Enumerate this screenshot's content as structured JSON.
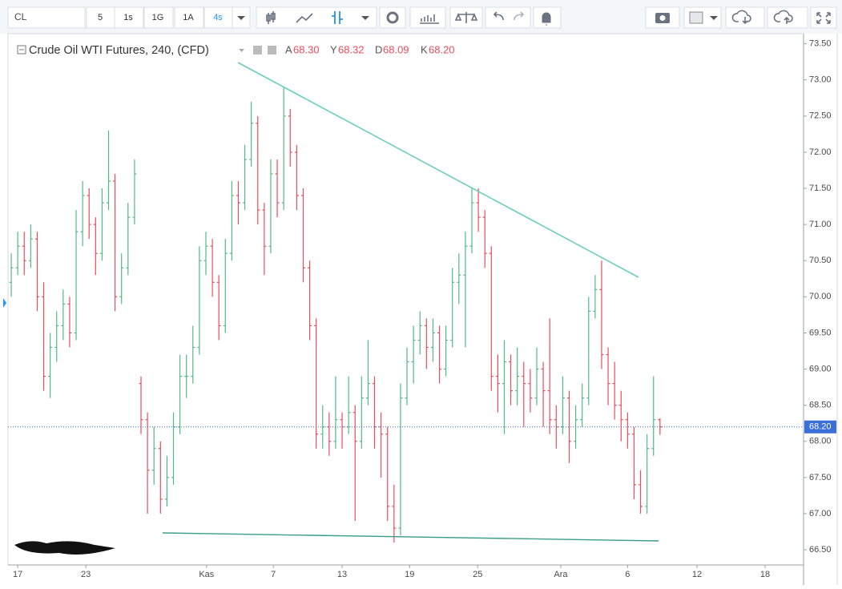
{
  "toolbar": {
    "symbol": "CL",
    "intervals": [
      "5",
      "1s",
      "1G",
      "1A",
      "4s"
    ],
    "active_interval": 4
  },
  "chart_data": {
    "type": "ohlc",
    "title": "Crude Oil WTI Futures, 240, (CFD)",
    "legend_labels": [
      "A",
      "Y",
      "D",
      "K"
    ],
    "legend_values": [
      "68.30",
      "68.32",
      "68.09",
      "68.20"
    ],
    "up_color": "#53b987",
    "down_color": "#eb4d5c",
    "last_price": {
      "value": 68.2,
      "label": "68.20"
    },
    "last_price_color": "#3a6fd8",
    "xlim": [
      -0.5,
      122
    ],
    "ylim": [
      66.29,
      73.64
    ],
    "xticks": [
      {
        "value": 1,
        "label": "17"
      },
      {
        "value": 11.5,
        "label": "23"
      },
      {
        "value": 30.1,
        "label": "Kas"
      },
      {
        "value": 40.4,
        "label": "7"
      },
      {
        "value": 51,
        "label": "13"
      },
      {
        "value": 61.4,
        "label": "19"
      },
      {
        "value": 71.9,
        "label": "25"
      },
      {
        "value": 84.7,
        "label": "Ara"
      },
      {
        "value": 95,
        "label": "6"
      },
      {
        "value": 105.7,
        "label": "12"
      },
      {
        "value": 116.2,
        "label": "18"
      }
    ],
    "yticks": [
      {
        "value": 66.5,
        "label": "66.50"
      },
      {
        "value": 67,
        "label": "67.00"
      },
      {
        "value": 67.5,
        "label": "67.50"
      },
      {
        "value": 68,
        "label": "68.00"
      },
      {
        "value": 68.5,
        "label": "68.50"
      },
      {
        "value": 69,
        "label": "69.00"
      },
      {
        "value": 69.5,
        "label": "69.50"
      },
      {
        "value": 70,
        "label": "70.00"
      },
      {
        "value": 70.5,
        "label": "70.50"
      },
      {
        "value": 71,
        "label": "71.00"
      },
      {
        "value": 71.5,
        "label": "71.50"
      },
      {
        "value": 72,
        "label": "72.00"
      },
      {
        "value": 72.5,
        "label": "72.50"
      },
      {
        "value": 73,
        "label": "73.00"
      },
      {
        "value": 73.5,
        "label": "73.50"
      }
    ],
    "ohlc": [
      [
        70.2,
        70.6,
        70.0,
        70.4
      ],
      [
        70.4,
        70.9,
        70.3,
        70.7
      ],
      [
        70.7,
        70.9,
        70.3,
        70.5
      ],
      [
        70.5,
        71.0,
        70.4,
        70.8
      ],
      [
        70.8,
        70.9,
        69.8,
        70.0
      ],
      [
        70.0,
        70.2,
        68.7,
        68.9
      ],
      [
        68.9,
        69.5,
        68.6,
        69.3
      ],
      [
        69.3,
        69.8,
        69.1,
        69.6
      ],
      [
        69.6,
        70.1,
        69.4,
        69.9
      ],
      [
        69.9,
        70.0,
        69.3,
        69.5
      ],
      [
        69.5,
        71.2,
        69.4,
        70.9
      ],
      [
        70.9,
        71.6,
        70.7,
        71.4
      ],
      [
        71.4,
        71.5,
        70.8,
        71.0
      ],
      [
        71.0,
        71.1,
        70.3,
        70.6
      ],
      [
        70.6,
        71.5,
        70.5,
        71.3
      ],
      [
        71.3,
        72.3,
        71.2,
        71.6
      ],
      [
        71.6,
        71.7,
        69.8,
        70.0
      ],
      [
        70.0,
        70.6,
        69.9,
        70.4
      ],
      [
        70.4,
        71.3,
        70.3,
        71.1
      ],
      [
        71.1,
        71.9,
        71.0,
        71.7
      ],
      [
        68.8,
        68.9,
        68.1,
        68.3
      ],
      [
        68.3,
        68.4,
        67.0,
        67.6
      ],
      [
        67.6,
        68.2,
        67.4,
        67.9
      ],
      [
        67.9,
        68.0,
        67.0,
        67.2
      ],
      [
        67.2,
        67.8,
        67.1,
        67.5
      ],
      [
        67.5,
        68.4,
        67.4,
        68.2
      ],
      [
        68.2,
        69.2,
        68.1,
        68.9
      ],
      [
        68.9,
        69.2,
        68.6,
        68.9
      ],
      [
        68.9,
        69.6,
        68.8,
        69.3
      ],
      [
        69.3,
        70.7,
        69.2,
        70.5
      ],
      [
        70.5,
        70.9,
        70.3,
        70.7
      ],
      [
        70.7,
        70.8,
        70.0,
        70.2
      ],
      [
        70.2,
        70.3,
        69.4,
        69.6
      ],
      [
        69.6,
        70.8,
        69.5,
        70.6
      ],
      [
        70.6,
        71.6,
        70.5,
        71.4
      ],
      [
        71.4,
        71.6,
        71.0,
        71.3
      ],
      [
        71.3,
        72.1,
        71.2,
        71.9
      ],
      [
        71.9,
        72.7,
        71.8,
        72.4
      ],
      [
        72.4,
        72.5,
        71.0,
        71.2
      ],
      [
        71.2,
        71.3,
        70.3,
        70.7
      ],
      [
        70.7,
        71.9,
        70.6,
        71.7
      ],
      [
        71.7,
        71.9,
        71.1,
        71.3
      ],
      [
        71.3,
        72.9,
        71.2,
        72.5
      ],
      [
        72.5,
        72.6,
        71.8,
        72.0
      ],
      [
        72.0,
        72.1,
        71.2,
        71.4
      ],
      [
        71.4,
        71.5,
        70.2,
        70.4
      ],
      [
        70.4,
        70.5,
        69.4,
        69.6
      ],
      [
        69.6,
        69.7,
        67.9,
        68.1
      ],
      [
        68.1,
        68.5,
        67.9,
        68.2
      ],
      [
        68.2,
        68.4,
        67.8,
        68.0
      ],
      [
        68.0,
        68.9,
        67.9,
        68.3
      ],
      [
        68.3,
        68.4,
        67.9,
        68.2
      ],
      [
        68.2,
        68.9,
        68.1,
        68.4
      ],
      [
        68.4,
        68.5,
        66.9,
        68.0
      ],
      [
        68.0,
        68.9,
        67.9,
        68.6
      ],
      [
        68.6,
        69.4,
        68.5,
        68.8
      ],
      [
        68.8,
        68.9,
        67.9,
        68.2
      ],
      [
        68.2,
        68.4,
        67.5,
        68.1
      ],
      [
        68.1,
        68.2,
        66.9,
        67.1
      ],
      [
        67.1,
        67.4,
        66.6,
        66.8
      ],
      [
        66.8,
        68.8,
        66.7,
        68.6
      ],
      [
        68.6,
        69.3,
        68.5,
        69.1
      ],
      [
        69.1,
        69.6,
        68.8,
        69.4
      ],
      [
        69.4,
        69.8,
        69.2,
        69.6
      ],
      [
        69.6,
        69.7,
        69.0,
        69.3
      ],
      [
        69.3,
        69.7,
        69.1,
        69.5
      ],
      [
        69.5,
        69.6,
        68.8,
        69.0
      ],
      [
        69.0,
        69.6,
        68.9,
        69.4
      ],
      [
        69.4,
        70.4,
        69.3,
        70.2
      ],
      [
        70.2,
        70.6,
        69.9,
        70.3
      ],
      [
        70.3,
        70.9,
        69.3,
        70.7
      ],
      [
        70.7,
        71.5,
        70.6,
        71.3
      ],
      [
        71.3,
        71.5,
        70.9,
        71.1
      ],
      [
        71.1,
        71.2,
        70.4,
        70.6
      ],
      [
        70.6,
        70.7,
        68.7,
        68.9
      ],
      [
        68.9,
        69.2,
        68.4,
        68.8
      ],
      [
        68.8,
        69.4,
        68.1,
        69.1
      ],
      [
        69.1,
        69.2,
        68.5,
        68.7
      ],
      [
        68.7,
        69.3,
        68.5,
        68.9
      ],
      [
        68.9,
        69.1,
        68.2,
        68.8
      ],
      [
        68.8,
        69.0,
        68.4,
        68.6
      ],
      [
        68.6,
        69.3,
        68.5,
        69.0
      ],
      [
        69.0,
        69.1,
        68.2,
        68.7
      ],
      [
        68.7,
        69.7,
        68.1,
        68.3
      ],
      [
        68.3,
        68.5,
        67.9,
        68.2
      ],
      [
        68.2,
        68.9,
        68.1,
        68.6
      ],
      [
        68.6,
        68.7,
        67.7,
        68.0
      ],
      [
        68.0,
        68.5,
        67.9,
        68.3
      ],
      [
        68.3,
        68.8,
        68.2,
        68.6
      ],
      [
        68.6,
        70.0,
        68.5,
        69.8
      ],
      [
        69.8,
        70.3,
        69.7,
        70.1
      ],
      [
        70.1,
        70.5,
        69.0,
        69.2
      ],
      [
        69.2,
        69.3,
        68.5,
        68.8
      ],
      [
        68.8,
        69.1,
        68.3,
        68.5
      ],
      [
        68.5,
        68.7,
        68.0,
        68.3
      ],
      [
        68.3,
        68.4,
        67.9,
        68.1
      ],
      [
        68.1,
        68.2,
        67.2,
        67.4
      ],
      [
        67.4,
        67.6,
        67.0,
        67.1
      ],
      [
        67.1,
        68.1,
        67.0,
        67.9
      ],
      [
        67.9,
        68.9,
        67.8,
        68.3
      ],
      [
        68.3,
        68.32,
        68.09,
        68.2
      ]
    ]
  }
}
